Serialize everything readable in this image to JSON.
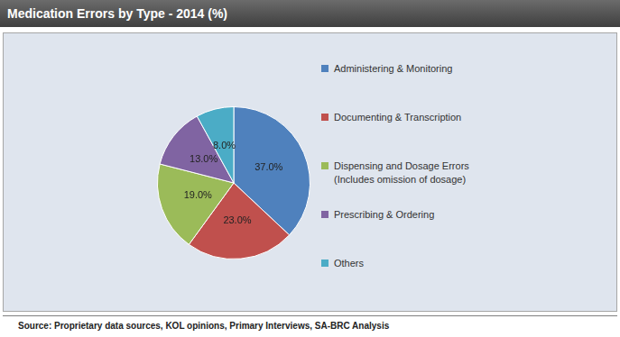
{
  "chart_data": {
    "type": "pie",
    "title": "Medication Errors by Type - 2014 (%)",
    "categories": [
      "Administering & Monitoring",
      "Documenting & Transcription",
      "Dispensing and Dosage Errors (Includes omission of dosage)",
      "Prescribing & Ordering",
      "Others"
    ],
    "values": [
      37,
      23,
      19,
      13,
      8
    ],
    "value_labels": [
      "37.0%",
      "23.0%",
      "19.0%",
      "13.0%",
      "8.0%"
    ],
    "colors": [
      "#4f81bd",
      "#c0504d",
      "#9bbb59",
      "#8064a2",
      "#4bacc6"
    ],
    "data_labels": true,
    "legend": "right",
    "source": "Source: Proprietary data sources, KOL opinions, Primary Interviews, SA-BRC Analysis"
  }
}
